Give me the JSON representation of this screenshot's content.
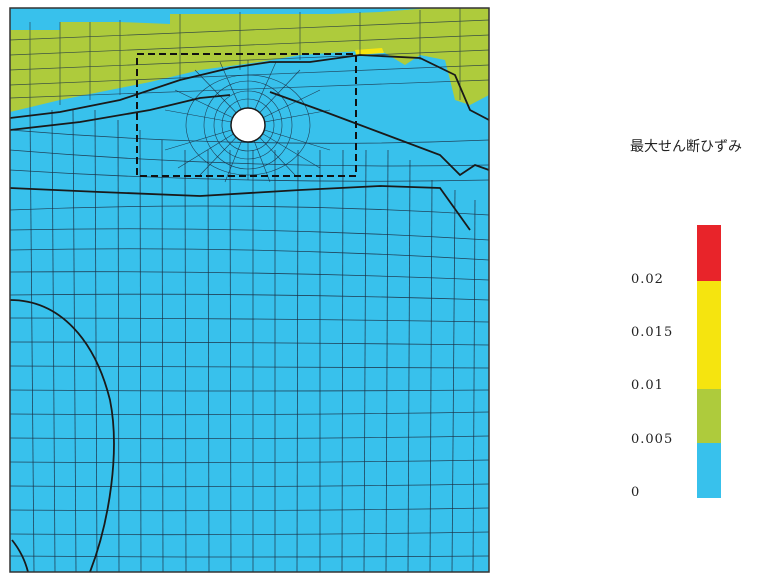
{
  "legend": {
    "title": "最大せん断ひずみ",
    "tick_labels": [
      "0.02",
      "0.015",
      "0.01",
      "0.005",
      "0"
    ],
    "colors": {
      "red": "#e8242a",
      "yellow": "#f5e40f",
      "green": "#aecb3c",
      "blue": "#38c1ec"
    }
  },
  "mesh": {
    "background": "#38c1ec",
    "surface_zone_color": "#aecb3c",
    "element_line_color": "#1b2f44",
    "boundary_line_color": "#1a1a1a",
    "opening_color": "#ffffff",
    "highlight_box": "dashed"
  }
}
